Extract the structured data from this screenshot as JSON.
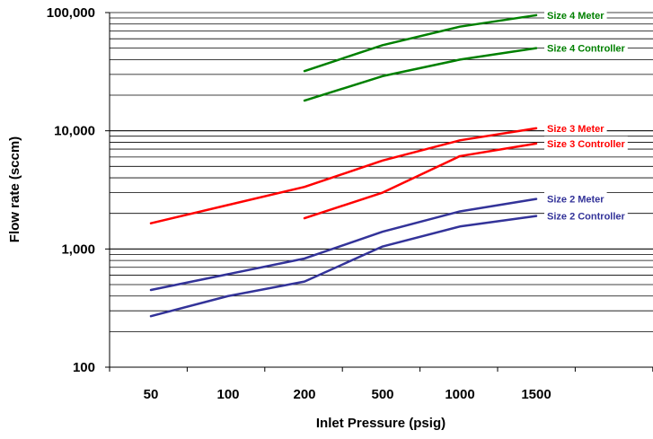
{
  "chart_data": {
    "type": "line",
    "title": "",
    "xlabel": "Inlet Pressure (psig)",
    "ylabel": "Flow rate (sccm)",
    "y_scale": "log",
    "ylim": [
      100,
      100000
    ],
    "grid": "horizontal minor and major gridlines",
    "categories": [
      "50",
      "100",
      "200",
      "500",
      "1000",
      "1500"
    ],
    "y_tick_labels": [
      "100",
      "1,000",
      "10,000",
      "100,000"
    ],
    "series": [
      {
        "name": "Size 4 Meter",
        "color": "#008000",
        "values": [
          null,
          null,
          32000,
          53000,
          76000,
          95000
        ]
      },
      {
        "name": "Size 4 Controller",
        "color": "#008000",
        "values": [
          null,
          null,
          18000,
          29000,
          40000,
          50000
        ]
      },
      {
        "name": "Size 3 Meter",
        "color": "#ff0000",
        "values": [
          1650,
          null,
          3350,
          5600,
          8300,
          10500
        ]
      },
      {
        "name": "Size 3 Controller",
        "color": "#ff0000",
        "values": [
          null,
          null,
          1820,
          3000,
          6100,
          7800
        ]
      },
      {
        "name": "Size 2 Meter",
        "color": "#333399",
        "values": [
          450,
          null,
          830,
          1400,
          2080,
          2650
        ]
      },
      {
        "name": "Size 2 Controller",
        "color": "#333399",
        "values": [
          270,
          400,
          530,
          1050,
          1550,
          1900
        ]
      }
    ]
  }
}
